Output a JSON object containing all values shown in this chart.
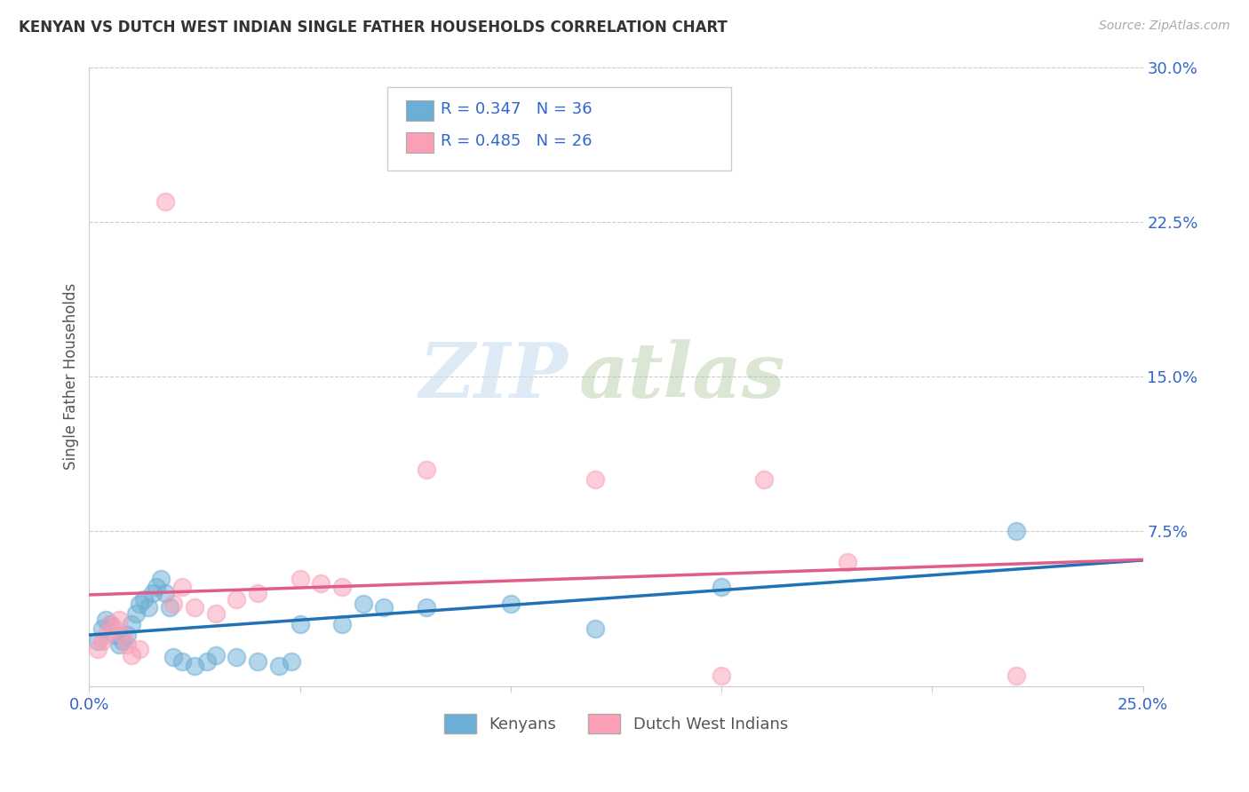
{
  "title": "KENYAN VS DUTCH WEST INDIAN SINGLE FATHER HOUSEHOLDS CORRELATION CHART",
  "source": "Source: ZipAtlas.com",
  "ylabel": "Single Father Households",
  "xlim": [
    0.0,
    0.25
  ],
  "ylim": [
    0.0,
    0.3
  ],
  "xticks": [
    0.0,
    0.05,
    0.1,
    0.15,
    0.2,
    0.25
  ],
  "yticks": [
    0.0,
    0.075,
    0.15,
    0.225,
    0.3
  ],
  "xtick_labels": [
    "0.0%",
    "",
    "",
    "",
    "",
    "25.0%"
  ],
  "ytick_labels": [
    "",
    "7.5%",
    "15.0%",
    "22.5%",
    "30.0%"
  ],
  "blue_color": "#6baed6",
  "pink_color": "#fa9fb5",
  "blue_line_color": "#2171b5",
  "pink_line_color": "#e05c8a",
  "R_blue": 0.347,
  "N_blue": 36,
  "R_pink": 0.485,
  "N_pink": 26,
  "legend_label_blue": "Kenyans",
  "legend_label_pink": "Dutch West Indians",
  "watermark_zip": "ZIP",
  "watermark_atlas": "atlas",
  "blue_pts_x": [
    0.002,
    0.003,
    0.004,
    0.005,
    0.006,
    0.007,
    0.008,
    0.009,
    0.01,
    0.011,
    0.012,
    0.013,
    0.014,
    0.015,
    0.016,
    0.017,
    0.018,
    0.019,
    0.02,
    0.022,
    0.025,
    0.028,
    0.03,
    0.035,
    0.04,
    0.045,
    0.048,
    0.05,
    0.06,
    0.065,
    0.07,
    0.08,
    0.1,
    0.12,
    0.15,
    0.22
  ],
  "blue_pts_y": [
    0.022,
    0.028,
    0.032,
    0.03,
    0.025,
    0.02,
    0.022,
    0.025,
    0.03,
    0.035,
    0.04,
    0.042,
    0.038,
    0.045,
    0.048,
    0.052,
    0.045,
    0.038,
    0.014,
    0.012,
    0.01,
    0.012,
    0.015,
    0.014,
    0.012,
    0.01,
    0.012,
    0.03,
    0.03,
    0.04,
    0.038,
    0.038,
    0.04,
    0.028,
    0.048,
    0.075
  ],
  "pink_pts_x": [
    0.002,
    0.003,
    0.004,
    0.005,
    0.006,
    0.007,
    0.008,
    0.009,
    0.01,
    0.012,
    0.018,
    0.02,
    0.022,
    0.025,
    0.03,
    0.035,
    0.04,
    0.05,
    0.055,
    0.06,
    0.08,
    0.12,
    0.15,
    0.16,
    0.18,
    0.22
  ],
  "pink_pts_y": [
    0.018,
    0.022,
    0.025,
    0.03,
    0.028,
    0.032,
    0.025,
    0.02,
    0.015,
    0.018,
    0.235,
    0.04,
    0.048,
    0.038,
    0.035,
    0.042,
    0.045,
    0.052,
    0.05,
    0.048,
    0.105,
    0.1,
    0.005,
    0.1,
    0.06,
    0.005
  ],
  "background_color": "#ffffff",
  "grid_color": "#cccccc"
}
